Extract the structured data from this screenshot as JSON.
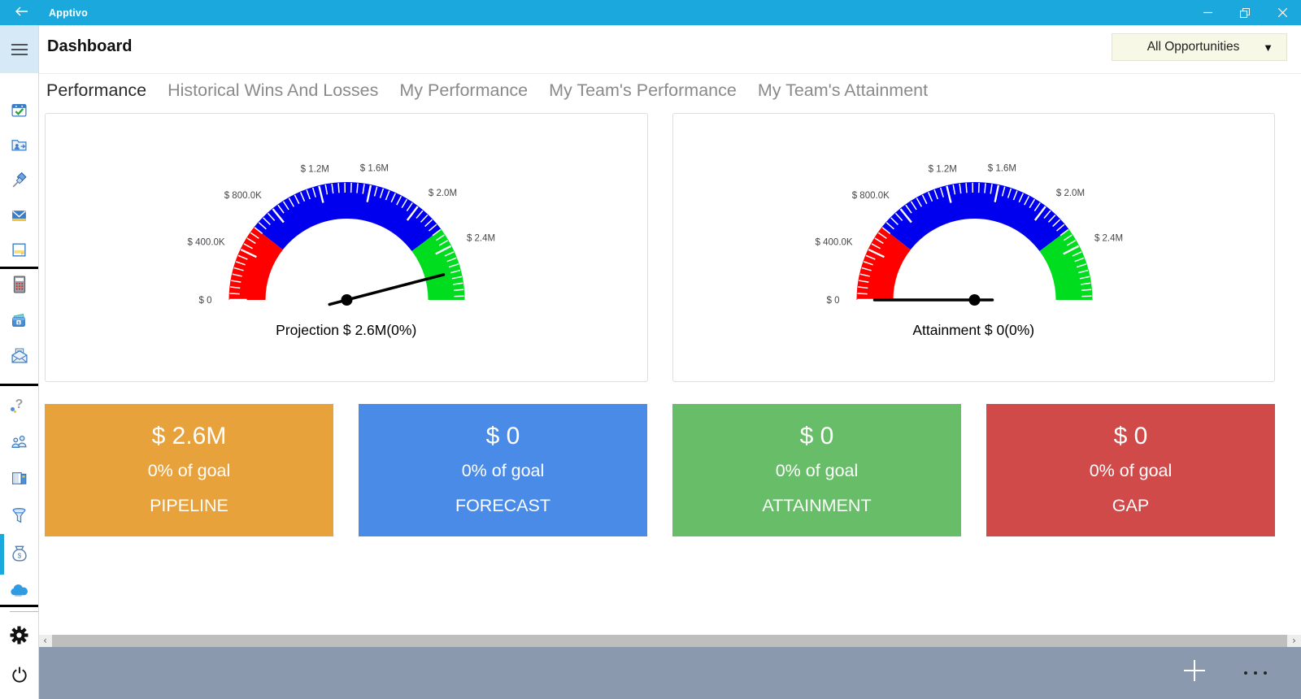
{
  "titlebar": {
    "app_title": "Apptivo",
    "back_icon": "arrow-left-icon",
    "controls": [
      "minimize",
      "restore",
      "close"
    ],
    "bg_color": "#1BA8DC"
  },
  "header": {
    "title": "Dashboard",
    "menu_icon": "hamburger-icon",
    "filter": {
      "value": "All Opportunities",
      "caret": "▼",
      "bg_color": "#F8F8E6"
    }
  },
  "sidebar": {
    "items": [
      {
        "icon": "calendar-check-icon"
      },
      {
        "icon": "contacts-folder-icon"
      },
      {
        "icon": "pushpin-icon"
      },
      {
        "icon": "email-icon"
      },
      {
        "icon": "notes-icon"
      },
      {
        "icon": "calculator-icon"
      },
      {
        "icon": "wallet-icon"
      },
      {
        "icon": "invoice-mail-icon"
      },
      {
        "icon": "help-headset-icon"
      },
      {
        "icon": "collaboration-icon"
      },
      {
        "icon": "ledger-icon"
      },
      {
        "icon": "funnel-icon"
      },
      {
        "icon": "money-bag-icon",
        "active": true
      },
      {
        "icon": "cloud-icon"
      },
      {
        "icon": "settings-gear-icon"
      },
      {
        "icon": "power-icon"
      }
    ],
    "active_color": "#1BA8DC"
  },
  "tabs": {
    "items": [
      {
        "label": "Performance",
        "active": true
      },
      {
        "label": "Historical Wins And Losses",
        "active": false
      },
      {
        "label": "My Performance",
        "active": false
      },
      {
        "label": "My Team's Performance",
        "active": false
      },
      {
        "label": "My Team's Attainment",
        "active": false
      }
    ]
  },
  "chart_data": [
    {
      "type": "gauge",
      "title": "Projection $ 2.6M(0%)",
      "min": 0,
      "max": 2830000,
      "minor_step": 50000,
      "tick_values": [
        0,
        400000,
        800000,
        1200000,
        1600000,
        2000000,
        2400000
      ],
      "tick_labels": [
        "$ 0",
        "$ 400.0K",
        "$ 800.0K",
        "$ 1.2M",
        "$ 1.6M",
        "$ 2.0M",
        "$ 2.4M"
      ],
      "segments": [
        {
          "from": 0,
          "to": 600000,
          "color": "#FF0000"
        },
        {
          "from": 600000,
          "to": 2250000,
          "color": "#0000EE"
        },
        {
          "from": 2250000,
          "to": 2830000,
          "color": "#00DC1E"
        }
      ],
      "needle_value": 2600000,
      "needle_label": "$ 2.6M(0%)"
    },
    {
      "type": "gauge",
      "title": "Attainment $ 0(0%)",
      "min": 0,
      "max": 2830000,
      "minor_step": 50000,
      "tick_values": [
        0,
        400000,
        800000,
        1200000,
        1600000,
        2000000,
        2400000
      ],
      "tick_labels": [
        "$ 0",
        "$ 400.0K",
        "$ 800.0K",
        "$ 1.2M",
        "$ 1.6M",
        "$ 2.0M",
        "$ 2.4M"
      ],
      "segments": [
        {
          "from": 0,
          "to": 600000,
          "color": "#FF0000"
        },
        {
          "from": 600000,
          "to": 2250000,
          "color": "#0000EE"
        },
        {
          "from": 2250000,
          "to": 2830000,
          "color": "#00DC1E"
        }
      ],
      "needle_value": 0,
      "needle_label": "$ 0(0%)"
    }
  ],
  "kpi_cards": [
    {
      "value": "$ 2.6M",
      "subtitle": "0% of goal",
      "label": "PIPELINE",
      "color": "#E8A23C"
    },
    {
      "value": "$ 0",
      "subtitle": "0% of goal",
      "label": "FORECAST",
      "color": "#4B8BE8"
    },
    {
      "value": "$ 0",
      "subtitle": "0% of goal",
      "label": "ATTAINMENT",
      "color": "#68BE68"
    },
    {
      "value": "$ 0",
      "subtitle": "0% of goal",
      "label": "GAP",
      "color": "#D04A4A"
    }
  ],
  "scrollbar": {
    "left_glyph": "‹",
    "right_glyph": "›"
  },
  "bottombar": {
    "add_icon": "plus-icon",
    "more_icon": "ellipsis-icon",
    "bg_color": "#8B99AF"
  }
}
